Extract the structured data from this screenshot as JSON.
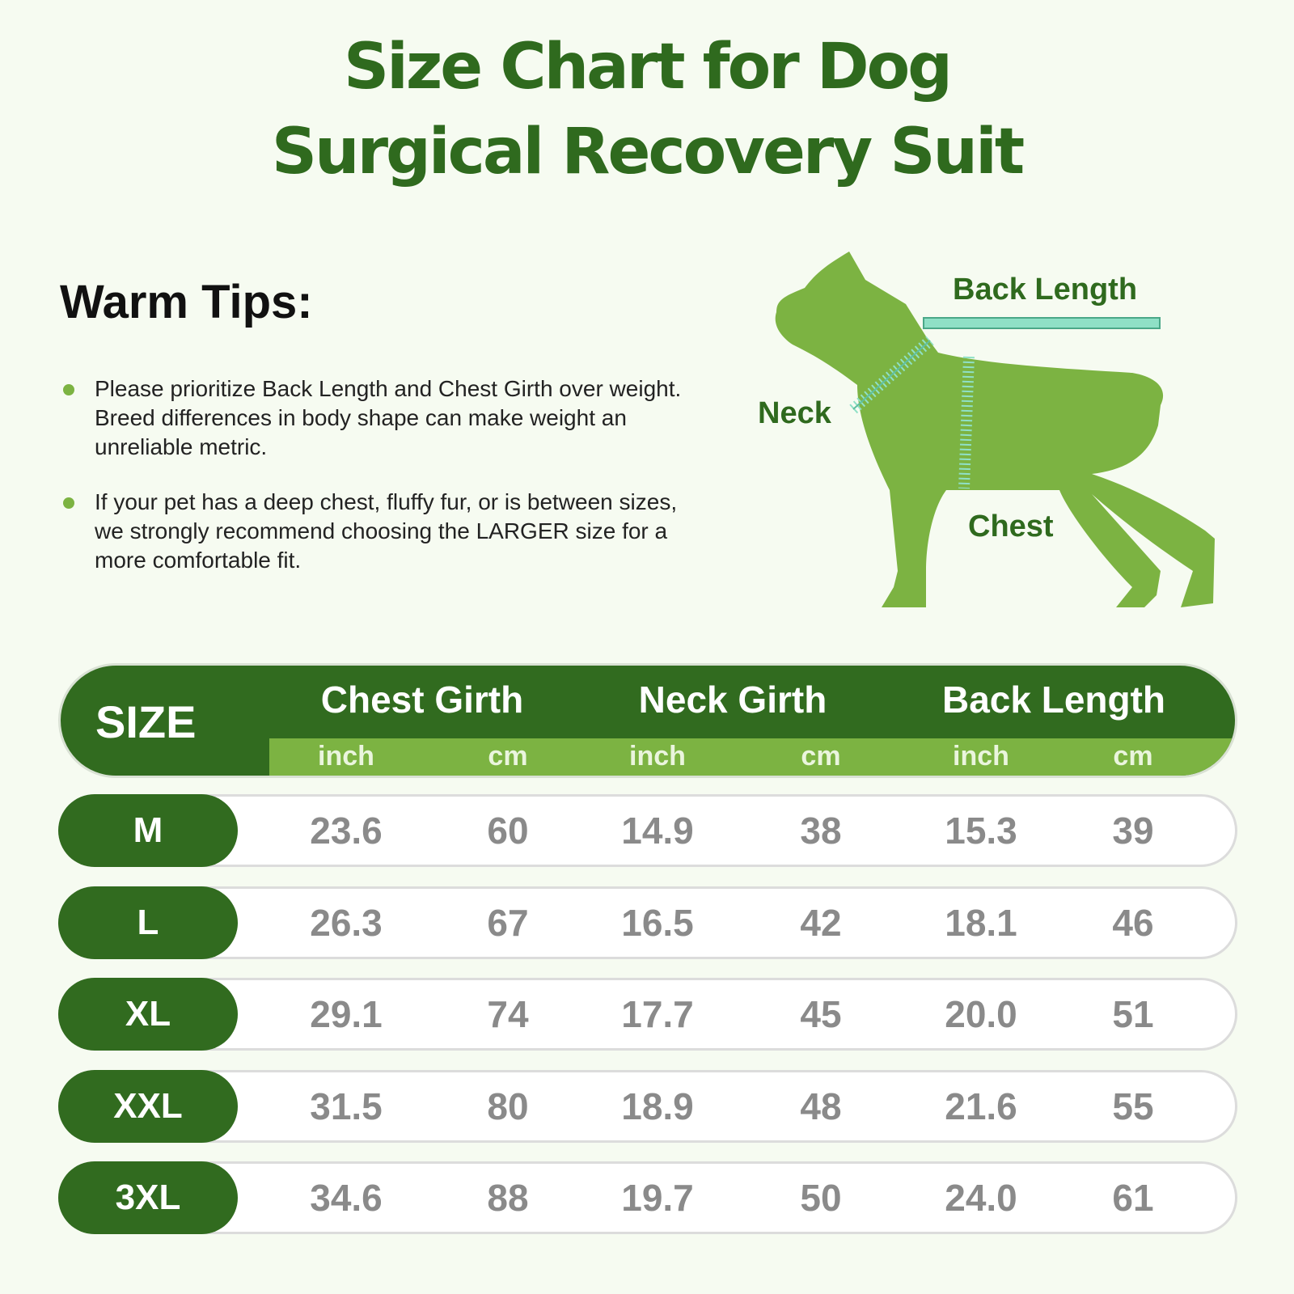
{
  "header": {
    "title_lines": [
      "Size Chart for Dog",
      "Surgical Recovery Suit"
    ]
  },
  "tips": {
    "title": "Warm Tips:",
    "items": [
      "Please prioritize Back Length and Chest Girth over weight. Breed differences in body shape can make weight an unreliable metric.",
      "If your pet has a deep chest, fluffy fur, or is between sizes, we strongly recommend choosing the LARGER size for a more comfortable fit."
    ]
  },
  "diagram": {
    "back_length": "Back Length",
    "neck": "Neck",
    "chest": "Chest"
  },
  "table": {
    "size_header": "SIZE",
    "groups": [
      "Chest Girth",
      "Neck Girth",
      "Back Length"
    ],
    "units": [
      "inch",
      "cm",
      "inch",
      "cm",
      "inch",
      "cm"
    ],
    "rows": [
      {
        "size": "M",
        "values": [
          "23.6",
          "60",
          "14.9",
          "38",
          "15.3",
          "39"
        ]
      },
      {
        "size": "L",
        "values": [
          "26.3",
          "67",
          "16.5",
          "42",
          "18.1",
          "46"
        ]
      },
      {
        "size": "XL",
        "values": [
          "29.1",
          "74",
          "17.7",
          "45",
          "20.0",
          "51"
        ]
      },
      {
        "size": "XXL",
        "values": [
          "31.5",
          "80",
          "18.9",
          "48",
          "21.6",
          "55"
        ]
      },
      {
        "size": "3XL",
        "values": [
          "34.6",
          "88",
          "19.7",
          "50",
          "24.0",
          "61"
        ]
      }
    ]
  }
}
